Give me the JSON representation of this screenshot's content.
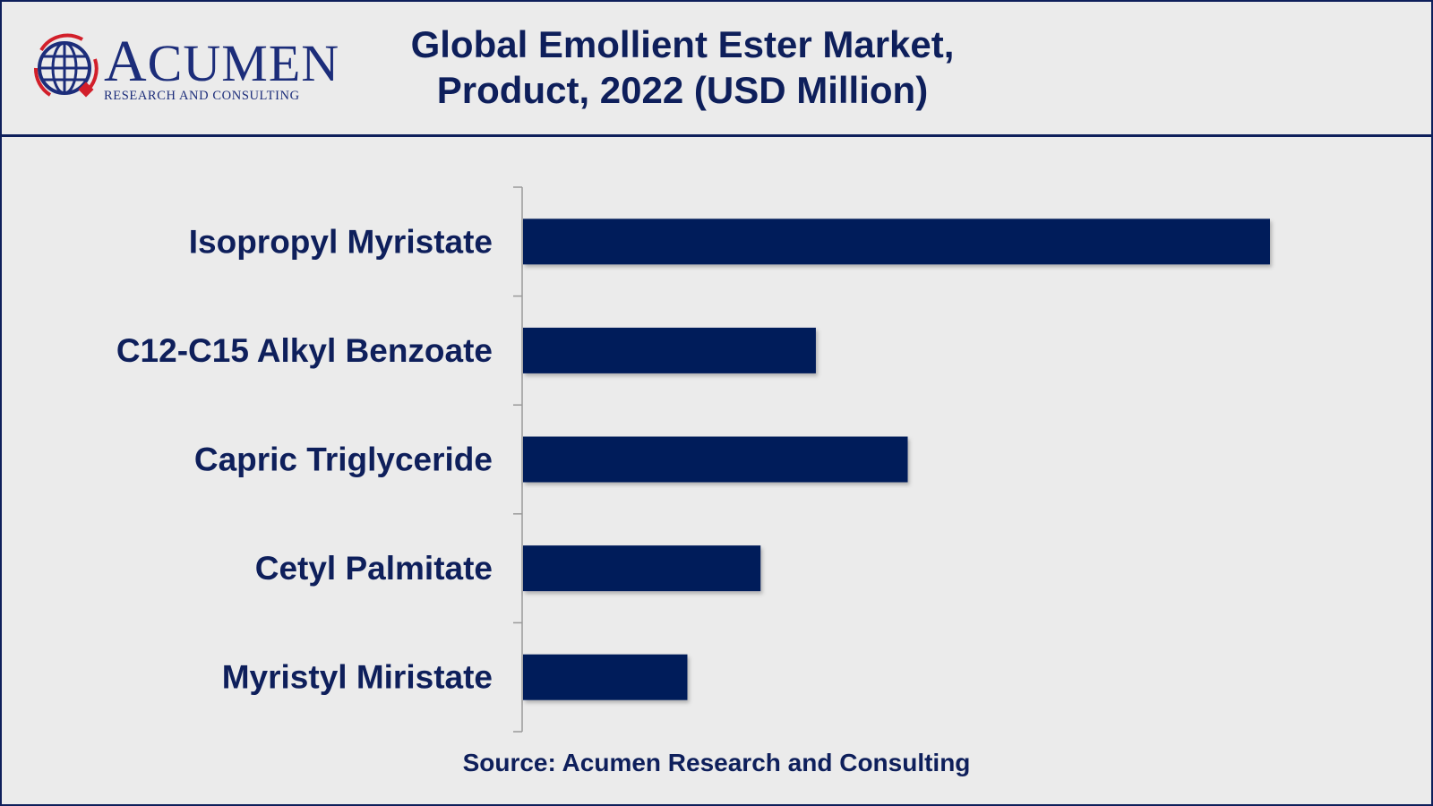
{
  "header": {
    "logo": {
      "brand": "Acumen",
      "tagline": "RESEARCH AND CONSULTING",
      "icon": "globe-icon",
      "colors": {
        "navy": "#1c2d7a",
        "red": "#d21f2a"
      }
    },
    "title_line1": "Global Emollient Ester Market,",
    "title_line2": "Product, 2022 (USD Million)"
  },
  "chart_data": {
    "type": "bar",
    "orientation": "horizontal",
    "categories": [
      "Isopropyl Myristate",
      "C12-C15 Alkyl Benzoate",
      "Capric Triglyceride",
      "Cetyl Palmitate",
      "Myristyl Miristate"
    ],
    "values": [
      100,
      39.2,
      51.5,
      31.8,
      22
    ],
    "xlim": [
      0,
      100
    ],
    "grid": false,
    "legend": "none",
    "bar_color": "#001b5a"
  },
  "footer": {
    "source": "Source: Acumen Research and Consulting"
  }
}
